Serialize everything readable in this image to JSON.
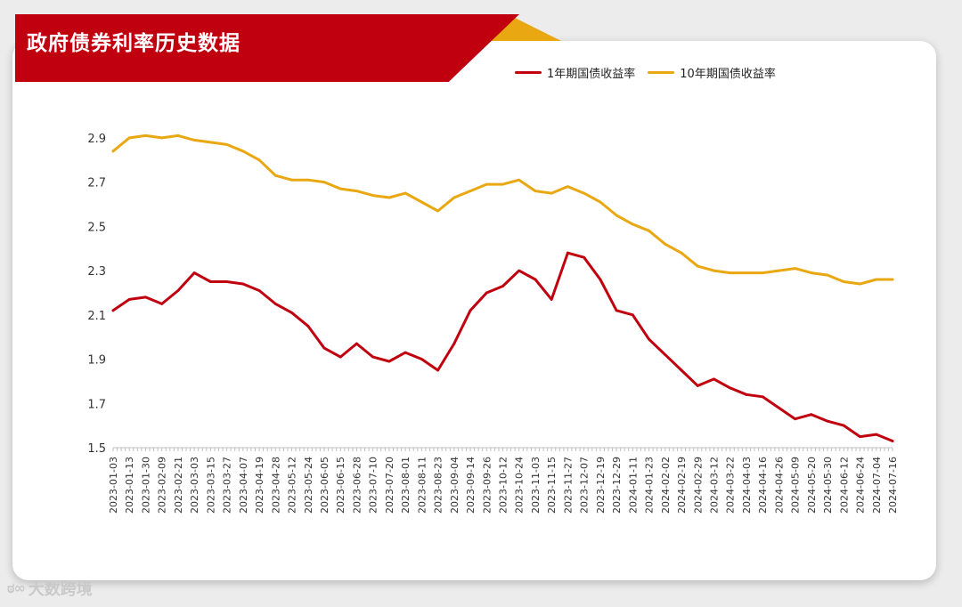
{
  "title": "政府债券利率历史数据",
  "watermark": {
    "logo": "ಠ∞",
    "text": "大数跨境"
  },
  "colors": {
    "banner": "#c0000f",
    "accent": "#e9a812"
  },
  "chart_data": {
    "type": "line",
    "title": "政府债券利率历史数据",
    "xlabel": "",
    "ylabel": "",
    "ylim": [
      1.5,
      2.95
    ],
    "yticks": [
      1.5,
      1.7,
      1.9,
      2.1,
      2.3,
      2.5,
      2.7,
      2.9
    ],
    "legend_position": "top-right",
    "grid": false,
    "categories": [
      "2023-01-03",
      "2023-01-13",
      "2023-01-30",
      "2023-02-09",
      "2023-02-21",
      "2023-03-03",
      "2023-03-15",
      "2023-03-27",
      "2023-04-07",
      "2023-04-19",
      "2023-04-28",
      "2023-05-12",
      "2023-05-24",
      "2023-06-05",
      "2023-06-15",
      "2023-06-28",
      "2023-07-10",
      "2023-07-20",
      "2023-08-01",
      "2023-08-11",
      "2023-08-23",
      "2023-09-04",
      "2023-09-14",
      "2023-09-26",
      "2023-10-12",
      "2023-10-24",
      "2023-11-03",
      "2023-11-15",
      "2023-11-27",
      "2023-12-07",
      "2023-12-19",
      "2023-12-29",
      "2024-01-11",
      "2024-01-23",
      "2024-02-02",
      "2024-02-19",
      "2024-02-29",
      "2024-03-12",
      "2024-03-22",
      "2024-04-03",
      "2024-04-16",
      "2024-04-26",
      "2024-05-09",
      "2024-05-20",
      "2024-05-30",
      "2024-06-12",
      "2024-06-24",
      "2024-07-04",
      "2024-07-16"
    ],
    "series": [
      {
        "name": "1年期国债收益率",
        "color": "#c0000f",
        "values": [
          2.12,
          2.17,
          2.18,
          2.15,
          2.21,
          2.29,
          2.25,
          2.25,
          2.24,
          2.21,
          2.15,
          2.11,
          2.05,
          1.95,
          1.91,
          1.97,
          1.91,
          1.89,
          1.93,
          1.9,
          1.85,
          1.97,
          2.12,
          2.2,
          2.23,
          2.3,
          2.26,
          2.17,
          2.38,
          2.36,
          2.26,
          2.12,
          2.1,
          1.99,
          1.92,
          1.85,
          1.78,
          1.81,
          1.77,
          1.74,
          1.73,
          1.68,
          1.63,
          1.65,
          1.62,
          1.6,
          1.55,
          1.56,
          1.53
        ]
      },
      {
        "name": "10年期国债收益率",
        "color": "#e9a812",
        "values": [
          2.84,
          2.9,
          2.91,
          2.9,
          2.91,
          2.89,
          2.88,
          2.87,
          2.84,
          2.8,
          2.73,
          2.71,
          2.71,
          2.7,
          2.67,
          2.66,
          2.64,
          2.63,
          2.65,
          2.61,
          2.57,
          2.63,
          2.66,
          2.69,
          2.69,
          2.71,
          2.66,
          2.65,
          2.68,
          2.65,
          2.61,
          2.55,
          2.51,
          2.48,
          2.42,
          2.38,
          2.32,
          2.3,
          2.29,
          2.29,
          2.29,
          2.3,
          2.31,
          2.29,
          2.28,
          2.25,
          2.24,
          2.26,
          2.26
        ]
      }
    ]
  }
}
